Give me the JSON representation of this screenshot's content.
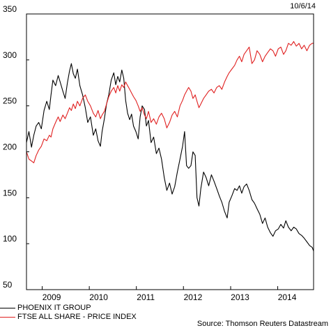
{
  "date_label": "10/6/14",
  "source": "Source: Thomson Reuters Datastream",
  "colors": {
    "series1": "#000000",
    "series2": "#e02020",
    "grid": "#000000"
  },
  "chart_data": {
    "type": "line",
    "ylim": [
      50,
      350
    ],
    "yticks": [
      50,
      100,
      150,
      200,
      250,
      300,
      350
    ],
    "xlim": [
      "2008-09-01",
      "2014-10-06"
    ],
    "year_labels": [
      {
        "label": "2009",
        "date": "2009-03-15"
      },
      {
        "label": "2010",
        "date": "2010-03-15"
      },
      {
        "label": "2011",
        "date": "2011-03-15"
      },
      {
        "label": "2012",
        "date": "2012-03-15"
      },
      {
        "label": "2013",
        "date": "2013-03-15"
      },
      {
        "label": "2014",
        "date": "2014-03-15"
      }
    ],
    "year_boundaries": [
      "2009-01-01",
      "2010-01-01",
      "2011-01-01",
      "2012-01-01",
      "2013-01-01",
      "2014-01-01"
    ],
    "series": [
      {
        "name": "PHOENIX IT GROUP",
        "color": "#000000",
        "points": [
          [
            "2008-09-01",
            210
          ],
          [
            "2008-09-20",
            222
          ],
          [
            "2008-10-10",
            205
          ],
          [
            "2008-10-28",
            218
          ],
          [
            "2008-11-15",
            228
          ],
          [
            "2008-12-05",
            232
          ],
          [
            "2008-12-25",
            225
          ],
          [
            "2009-01-15",
            245
          ],
          [
            "2009-02-05",
            255
          ],
          [
            "2009-02-25",
            246
          ],
          [
            "2009-03-10",
            262
          ],
          [
            "2009-03-25",
            278
          ],
          [
            "2009-04-15",
            272
          ],
          [
            "2009-05-05",
            283
          ],
          [
            "2009-05-20",
            276
          ],
          [
            "2009-06-10",
            266
          ],
          [
            "2009-06-28",
            258
          ],
          [
            "2009-07-15",
            275
          ],
          [
            "2009-08-01",
            288
          ],
          [
            "2009-08-15",
            296
          ],
          [
            "2009-08-30",
            285
          ],
          [
            "2009-09-15",
            280
          ],
          [
            "2009-10-01",
            290
          ],
          [
            "2009-10-20",
            272
          ],
          [
            "2009-11-10",
            262
          ],
          [
            "2009-12-01",
            248
          ],
          [
            "2009-12-20",
            232
          ],
          [
            "2010-01-10",
            238
          ],
          [
            "2010-02-01",
            218
          ],
          [
            "2010-02-20",
            225
          ],
          [
            "2010-03-10",
            212
          ],
          [
            "2010-03-28",
            206
          ],
          [
            "2010-04-10",
            222
          ],
          [
            "2010-04-28",
            236
          ],
          [
            "2010-05-15",
            252
          ],
          [
            "2010-06-01",
            262
          ],
          [
            "2010-06-20",
            278
          ],
          [
            "2010-07-10",
            286
          ],
          [
            "2010-07-25",
            273
          ],
          [
            "2010-08-10",
            282
          ],
          [
            "2010-08-25",
            276
          ],
          [
            "2010-09-10",
            289
          ],
          [
            "2010-09-25",
            280
          ],
          [
            "2010-10-10",
            256
          ],
          [
            "2010-10-25",
            242
          ],
          [
            "2010-11-10",
            235
          ],
          [
            "2010-11-25",
            241
          ],
          [
            "2010-12-10",
            228
          ],
          [
            "2010-12-28",
            222
          ],
          [
            "2011-01-15",
            214
          ],
          [
            "2011-01-30",
            238
          ],
          [
            "2011-02-15",
            250
          ],
          [
            "2011-03-05",
            246
          ],
          [
            "2011-03-20",
            228
          ],
          [
            "2011-04-05",
            234
          ],
          [
            "2011-04-25",
            210
          ],
          [
            "2011-05-15",
            216
          ],
          [
            "2011-06-05",
            198
          ],
          [
            "2011-06-25",
            204
          ],
          [
            "2011-07-15",
            192
          ],
          [
            "2011-08-05",
            172
          ],
          [
            "2011-08-25",
            158
          ],
          [
            "2011-09-15",
            166
          ],
          [
            "2011-10-05",
            154
          ],
          [
            "2011-10-25",
            162
          ],
          [
            "2011-11-15",
            178
          ],
          [
            "2011-12-05",
            192
          ],
          [
            "2011-12-25",
            206
          ],
          [
            "2012-01-10",
            222
          ],
          [
            "2012-01-25",
            185
          ],
          [
            "2012-02-10",
            182
          ],
          [
            "2012-02-28",
            185
          ],
          [
            "2012-03-15",
            200
          ],
          [
            "2012-04-01",
            196
          ],
          [
            "2012-04-15",
            150
          ],
          [
            "2012-04-30",
            141
          ],
          [
            "2012-05-15",
            160
          ],
          [
            "2012-06-05",
            178
          ],
          [
            "2012-06-25",
            172
          ],
          [
            "2012-07-15",
            163
          ],
          [
            "2012-08-05",
            175
          ],
          [
            "2012-08-25",
            168
          ],
          [
            "2012-09-15",
            160
          ],
          [
            "2012-10-05",
            152
          ],
          [
            "2012-10-25",
            145
          ],
          [
            "2012-11-15",
            135
          ],
          [
            "2012-12-05",
            128
          ],
          [
            "2012-12-20",
            145
          ],
          [
            "2013-01-10",
            152
          ],
          [
            "2013-02-01",
            160
          ],
          [
            "2013-02-20",
            158
          ],
          [
            "2013-03-10",
            163
          ],
          [
            "2013-03-28",
            155
          ],
          [
            "2013-04-15",
            162
          ],
          [
            "2013-05-05",
            165
          ],
          [
            "2013-05-25",
            158
          ],
          [
            "2013-06-15",
            148
          ],
          [
            "2013-07-05",
            144
          ],
          [
            "2013-07-25",
            138
          ],
          [
            "2013-08-15",
            132
          ],
          [
            "2013-09-05",
            122
          ],
          [
            "2013-09-25",
            128
          ],
          [
            "2013-10-15",
            118
          ],
          [
            "2013-11-05",
            112
          ],
          [
            "2013-11-25",
            108
          ],
          [
            "2013-12-15",
            114
          ],
          [
            "2014-01-05",
            116
          ],
          [
            "2014-01-25",
            121
          ],
          [
            "2014-02-15",
            117
          ],
          [
            "2014-03-05",
            125
          ],
          [
            "2014-03-25",
            118
          ],
          [
            "2014-04-15",
            114
          ],
          [
            "2014-05-05",
            118
          ],
          [
            "2014-05-25",
            116
          ],
          [
            "2014-06-15",
            111
          ],
          [
            "2014-07-05",
            109
          ],
          [
            "2014-07-25",
            106
          ],
          [
            "2014-08-15",
            102
          ],
          [
            "2014-09-05",
            98
          ],
          [
            "2014-09-25",
            96
          ],
          [
            "2014-10-06",
            92
          ]
        ]
      },
      {
        "name": "FTSE ALL SHARE - PRICE INDEX",
        "color": "#e02020",
        "points": [
          [
            "2008-09-01",
            200
          ],
          [
            "2008-09-20",
            192
          ],
          [
            "2008-10-10",
            190
          ],
          [
            "2008-10-28",
            188
          ],
          [
            "2008-11-15",
            196
          ],
          [
            "2008-12-05",
            202
          ],
          [
            "2008-12-25",
            206
          ],
          [
            "2009-01-15",
            214
          ],
          [
            "2009-02-05",
            212
          ],
          [
            "2009-02-25",
            218
          ],
          [
            "2009-03-10",
            216
          ],
          [
            "2009-03-25",
            225
          ],
          [
            "2009-04-15",
            232
          ],
          [
            "2009-05-05",
            238
          ],
          [
            "2009-05-20",
            233
          ],
          [
            "2009-06-10",
            240
          ],
          [
            "2009-06-28",
            236
          ],
          [
            "2009-07-15",
            242
          ],
          [
            "2009-08-01",
            248
          ],
          [
            "2009-08-15",
            245
          ],
          [
            "2009-08-30",
            252
          ],
          [
            "2009-09-15",
            247
          ],
          [
            "2009-10-01",
            255
          ],
          [
            "2009-10-20",
            250
          ],
          [
            "2009-11-10",
            258
          ],
          [
            "2009-12-01",
            262
          ],
          [
            "2009-12-20",
            255
          ],
          [
            "2010-01-10",
            250
          ],
          [
            "2010-02-01",
            242
          ],
          [
            "2010-02-20",
            238
          ],
          [
            "2010-03-10",
            245
          ],
          [
            "2010-03-28",
            236
          ],
          [
            "2010-04-10",
            240
          ],
          [
            "2010-04-28",
            244
          ],
          [
            "2010-05-15",
            252
          ],
          [
            "2010-06-01",
            260
          ],
          [
            "2010-06-20",
            266
          ],
          [
            "2010-07-10",
            270
          ],
          [
            "2010-07-25",
            264
          ],
          [
            "2010-08-10",
            272
          ],
          [
            "2010-08-25",
            266
          ],
          [
            "2010-09-10",
            273
          ],
          [
            "2010-09-25",
            270
          ],
          [
            "2010-10-10",
            276
          ],
          [
            "2010-10-25",
            272
          ],
          [
            "2010-11-10",
            268
          ],
          [
            "2010-11-25",
            264
          ],
          [
            "2010-12-10",
            260
          ],
          [
            "2010-12-28",
            256
          ],
          [
            "2011-01-15",
            250
          ],
          [
            "2011-01-30",
            244
          ],
          [
            "2011-02-15",
            248
          ],
          [
            "2011-03-05",
            240
          ],
          [
            "2011-03-20",
            236
          ],
          [
            "2011-04-05",
            244
          ],
          [
            "2011-04-25",
            232
          ],
          [
            "2011-05-15",
            236
          ],
          [
            "2011-06-05",
            230
          ],
          [
            "2011-06-25",
            238
          ],
          [
            "2011-07-15",
            242
          ],
          [
            "2011-08-05",
            236
          ],
          [
            "2011-08-25",
            226
          ],
          [
            "2011-09-15",
            232
          ],
          [
            "2011-10-05",
            240
          ],
          [
            "2011-10-25",
            244
          ],
          [
            "2011-11-15",
            238
          ],
          [
            "2011-12-05",
            250
          ],
          [
            "2011-12-25",
            256
          ],
          [
            "2012-01-10",
            262
          ],
          [
            "2012-01-25",
            266
          ],
          [
            "2012-02-10",
            270
          ],
          [
            "2012-02-28",
            266
          ],
          [
            "2012-03-15",
            258
          ],
          [
            "2012-04-01",
            262
          ],
          [
            "2012-04-15",
            255
          ],
          [
            "2012-04-30",
            248
          ],
          [
            "2012-05-15",
            252
          ],
          [
            "2012-06-05",
            258
          ],
          [
            "2012-06-25",
            262
          ],
          [
            "2012-07-15",
            266
          ],
          [
            "2012-08-05",
            268
          ],
          [
            "2012-08-25",
            264
          ],
          [
            "2012-09-15",
            270
          ],
          [
            "2012-10-05",
            272
          ],
          [
            "2012-10-25",
            268
          ],
          [
            "2012-11-15",
            276
          ],
          [
            "2012-12-05",
            282
          ],
          [
            "2012-12-20",
            286
          ],
          [
            "2013-01-10",
            290
          ],
          [
            "2013-02-01",
            294
          ],
          [
            "2013-02-20",
            300
          ],
          [
            "2013-03-10",
            304
          ],
          [
            "2013-03-28",
            298
          ],
          [
            "2013-04-15",
            306
          ],
          [
            "2013-05-05",
            310
          ],
          [
            "2013-05-25",
            314
          ],
          [
            "2013-06-15",
            296
          ],
          [
            "2013-07-05",
            300
          ],
          [
            "2013-07-25",
            310
          ],
          [
            "2013-08-15",
            306
          ],
          [
            "2013-09-05",
            298
          ],
          [
            "2013-09-25",
            304
          ],
          [
            "2013-10-15",
            308
          ],
          [
            "2013-11-05",
            312
          ],
          [
            "2013-11-25",
            310
          ],
          [
            "2013-12-15",
            304
          ],
          [
            "2014-01-05",
            312
          ],
          [
            "2014-01-25",
            314
          ],
          [
            "2014-02-15",
            306
          ],
          [
            "2014-03-05",
            310
          ],
          [
            "2014-03-25",
            318
          ],
          [
            "2014-04-15",
            316
          ],
          [
            "2014-05-05",
            320
          ],
          [
            "2014-05-25",
            315
          ],
          [
            "2014-06-15",
            318
          ],
          [
            "2014-07-05",
            312
          ],
          [
            "2014-07-25",
            316
          ],
          [
            "2014-08-15",
            310
          ],
          [
            "2014-09-05",
            316
          ],
          [
            "2014-09-25",
            318
          ],
          [
            "2014-10-06",
            318
          ]
        ]
      }
    ]
  }
}
